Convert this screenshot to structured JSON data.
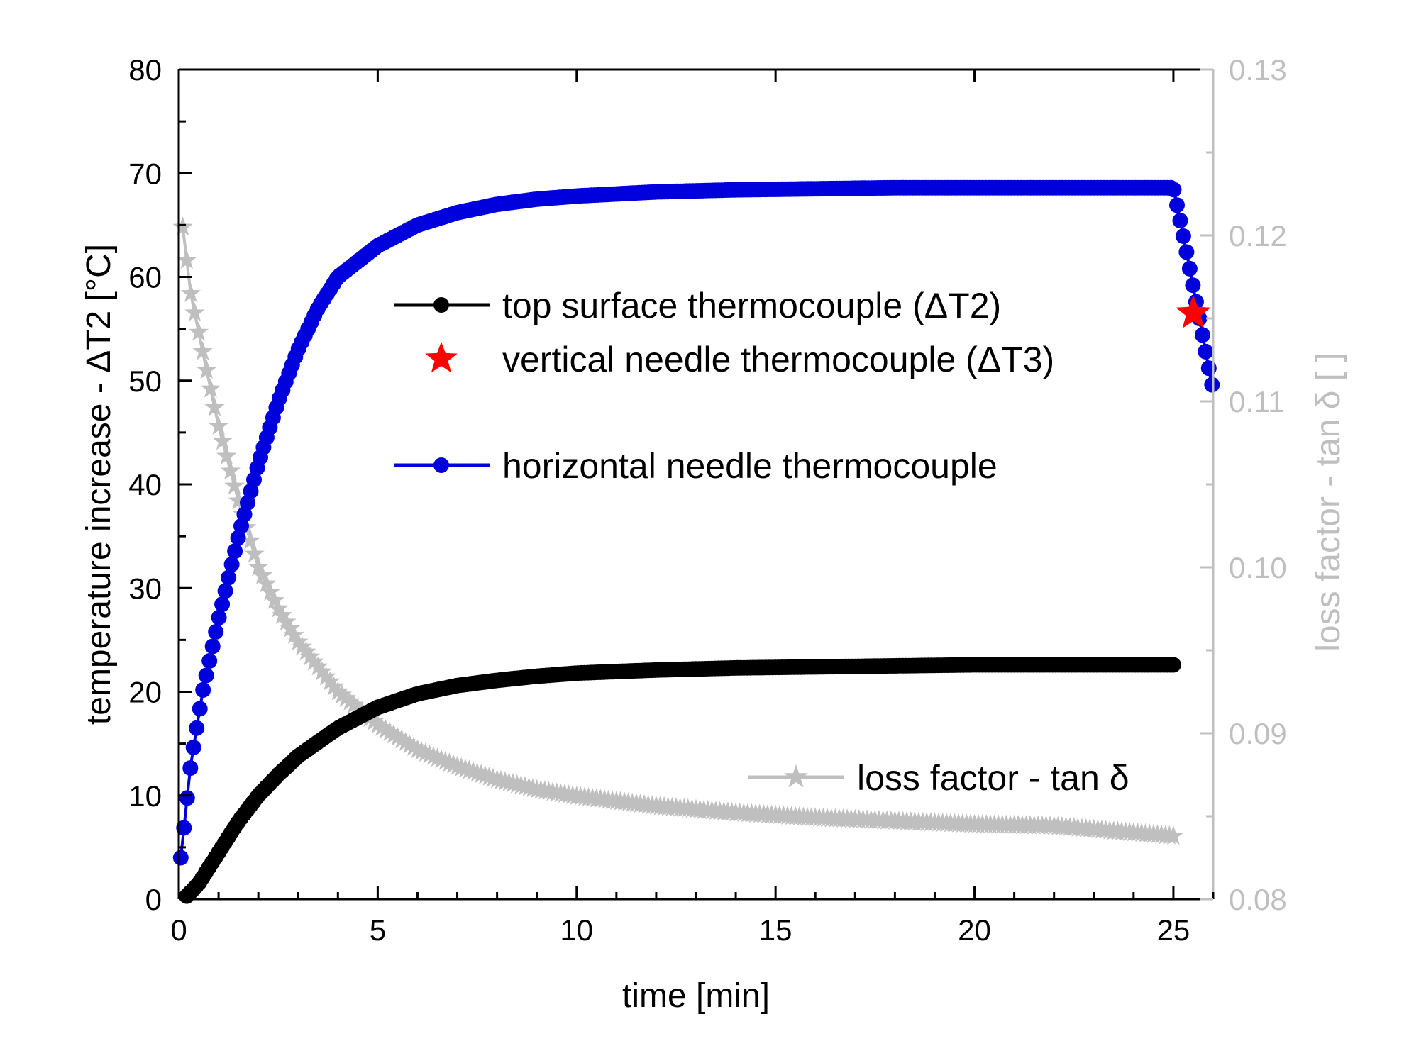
{
  "chart_data": {
    "type": "line",
    "xlabel": "time [min]",
    "ylabel": "temperature increase - ΔT2 [°C]",
    "y2label": "loss factor - tan δ [ ]",
    "xlim": [
      0,
      26
    ],
    "ylim": [
      0,
      80
    ],
    "y2lim": [
      0.08,
      0.13
    ],
    "x_ticks": [
      "0",
      "5",
      "10",
      "15",
      "20",
      "25"
    ],
    "y_ticks": [
      "0",
      "10",
      "20",
      "30",
      "40",
      "50",
      "60",
      "70",
      "80"
    ],
    "y2_ticks": [
      "0.08",
      "0.09",
      "0.10",
      "0.11",
      "0.12",
      "0.13"
    ],
    "grid": false,
    "colors": {
      "top": "#000000",
      "vertical": "#ff0000",
      "horizontal": "#0000dd",
      "loss": "#bfbfbf",
      "right_axis": "#bfbfbf"
    },
    "series": [
      {
        "name": "top surface thermocouple (ΔT2)",
        "axis": "left",
        "marker": "circle",
        "x": [
          0.2,
          0.5,
          1,
          1.5,
          2,
          2.5,
          3,
          4,
          5,
          6,
          7,
          8,
          9,
          10,
          12,
          14,
          16,
          18,
          20,
          22,
          25
        ],
        "values": [
          0.3,
          1.5,
          4.5,
          7.5,
          10,
          12,
          13.8,
          16.5,
          18.5,
          19.8,
          20.6,
          21.1,
          21.5,
          21.8,
          22.1,
          22.3,
          22.4,
          22.5,
          22.6,
          22.6,
          22.6
        ]
      },
      {
        "name": "vertical needle thermocouple (ΔT3)",
        "axis": "left",
        "marker": "star",
        "x": [
          25.5
        ],
        "values": [
          56.5
        ]
      },
      {
        "name": "horizontal needle thermocouple",
        "axis": "left",
        "marker": "circle",
        "x": [
          0.05,
          0.3,
          0.6,
          1,
          1.5,
          2,
          2.5,
          3,
          3.5,
          4,
          5,
          6,
          7,
          8,
          9,
          10,
          12,
          14,
          16,
          18,
          20,
          22,
          24,
          25,
          25.3,
          25.6,
          26
        ],
        "values": [
          4,
          13,
          20,
          27,
          35,
          42,
          48,
          53,
          57,
          60,
          63,
          65,
          66.2,
          67,
          67.5,
          67.8,
          68.2,
          68.4,
          68.5,
          68.6,
          68.6,
          68.6,
          68.6,
          68.6,
          63,
          57,
          49
        ]
      },
      {
        "name": "loss factor - tan δ",
        "axis": "right",
        "marker": "star",
        "x": [
          0.1,
          0.3,
          0.6,
          1,
          1.5,
          2,
          2.5,
          3,
          4,
          5,
          6,
          7,
          8,
          9,
          10,
          12,
          14,
          16,
          18,
          20,
          22,
          25
        ],
        "values": [
          0.1205,
          0.1165,
          0.113,
          0.1085,
          0.104,
          0.1,
          0.0975,
          0.0955,
          0.0925,
          0.0905,
          0.089,
          0.088,
          0.0872,
          0.0866,
          0.0862,
          0.0856,
          0.0852,
          0.0849,
          0.0847,
          0.0845,
          0.0844,
          0.0838
        ]
      }
    ],
    "legend": [
      "top surface thermocouple (ΔT2)",
      "vertical needle thermocouple (ΔT3)",
      "horizontal needle thermocouple",
      "loss factor - tan δ"
    ]
  }
}
